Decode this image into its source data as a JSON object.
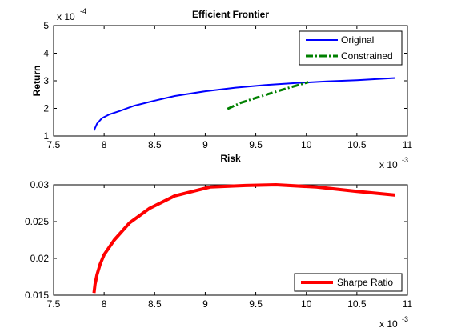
{
  "chart_data": [
    {
      "type": "line",
      "title": "Efficient Frontier",
      "xlabel": "Risk",
      "ylabel": "Return",
      "x_multiplier": "x 10",
      "x_exponent": "-3",
      "y_multiplier": "x 10",
      "y_exponent": "-4",
      "xlim": [
        7.5,
        11
      ],
      "ylim": [
        1,
        5
      ],
      "xticks": [
        7.5,
        8,
        8.5,
        9,
        9.5,
        10,
        10.5,
        11
      ],
      "yticks": [
        1,
        2,
        3,
        4,
        5
      ],
      "xtick_labels": [
        "7.5",
        "8",
        "8.5",
        "9",
        "9.5",
        "10",
        "10.5",
        "11"
      ],
      "ytick_labels": [
        "1",
        "2",
        "3",
        "4",
        "5"
      ],
      "grid": false,
      "legend_position": "top-right",
      "series": [
        {
          "name": "Original",
          "color": "#0000ff",
          "style": "solid",
          "x": [
            7.9,
            7.93,
            7.98,
            8.05,
            8.15,
            8.3,
            8.5,
            8.7,
            9.0,
            9.3,
            9.6,
            9.9,
            10.2,
            10.5,
            10.88
          ],
          "y": [
            1.2,
            1.45,
            1.65,
            1.78,
            1.9,
            2.1,
            2.28,
            2.45,
            2.62,
            2.75,
            2.85,
            2.92,
            2.98,
            3.02,
            3.1
          ]
        },
        {
          "name": "Constrained",
          "color": "#008000",
          "style": "dashdot",
          "x": [
            9.22,
            9.35,
            9.5,
            9.65,
            9.8,
            10.02
          ],
          "y": [
            1.98,
            2.2,
            2.38,
            2.55,
            2.72,
            2.95
          ]
        }
      ]
    },
    {
      "type": "line",
      "x_multiplier": "x 10",
      "x_exponent": "-3",
      "xlim": [
        7.5,
        11
      ],
      "ylim": [
        0.015,
        0.03
      ],
      "xticks": [
        7.5,
        8,
        8.5,
        9,
        9.5,
        10,
        10.5,
        11
      ],
      "yticks": [
        0.015,
        0.02,
        0.025,
        0.03
      ],
      "xtick_labels": [
        "7.5",
        "8",
        "8.5",
        "9",
        "9.5",
        "10",
        "10.5",
        "11"
      ],
      "ytick_labels": [
        "0.015",
        "0.02",
        "0.025",
        "0.03"
      ],
      "grid": false,
      "legend_position": "bottom-right",
      "series": [
        {
          "name": "Sharpe Ratio",
          "color": "#ff0000",
          "style": "solid",
          "x": [
            7.9,
            7.91,
            7.93,
            7.96,
            8.0,
            8.1,
            8.25,
            8.45,
            8.7,
            9.05,
            9.4,
            9.7,
            10.1,
            10.5,
            10.88
          ],
          "y": [
            0.0153,
            0.0165,
            0.0178,
            0.0192,
            0.0205,
            0.0225,
            0.0248,
            0.0268,
            0.0285,
            0.0297,
            0.0299,
            0.03,
            0.0297,
            0.0291,
            0.0286
          ]
        }
      ]
    }
  ]
}
